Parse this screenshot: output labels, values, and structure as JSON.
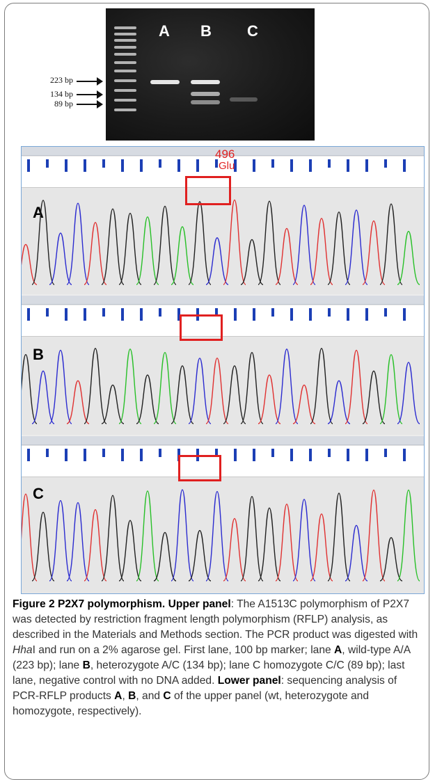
{
  "gel": {
    "lane_labels": [
      "A",
      "B",
      "C"
    ],
    "markers": [
      "223 bp",
      "134 bp",
      "89 bp"
    ]
  },
  "sequence": {
    "codon_number": "496",
    "amino_acid": "Glu",
    "track_labels": [
      "A",
      "B",
      "C"
    ],
    "colors": {
      "A": "#28c028",
      "C": "#2b2bd0",
      "G": "#202020",
      "T": "#e03030",
      "highlight": "#e02020"
    }
  },
  "caption": {
    "figure_label": "Figure 2 P2X7 polymorphism.",
    "upper_label": "Upper panel",
    "upper_text_1": ": The A1513C polymorphism of P2X7 was detected by restriction fragment length polymorphism (RFLP) analysis, as described in the Materials and Methods section. The PCR product was digested with ",
    "enzyme": "Hha",
    "enzyme_suffix": "I and run on a 2% agarose gel. First lane, 100 bp marker; lane ",
    "lane_a": "A",
    "text_2": ", wild-type A/A (223 bp); lane ",
    "lane_b": "B",
    "text_3": ", heterozygote A/C (134 bp); lane C homozygote C/C (89 bp); last lane, negative control with no DNA added. ",
    "lower_label": "Lower panel",
    "text_4": ": sequencing analysis of PCR-RFLP products ",
    "prod_a": "A",
    "sep_1": ", ",
    "prod_b": "B",
    "sep_2": ", and ",
    "prod_c": "C",
    "text_5": " of the upper panel (wt, heterozygote and homozygote, respectively)."
  }
}
